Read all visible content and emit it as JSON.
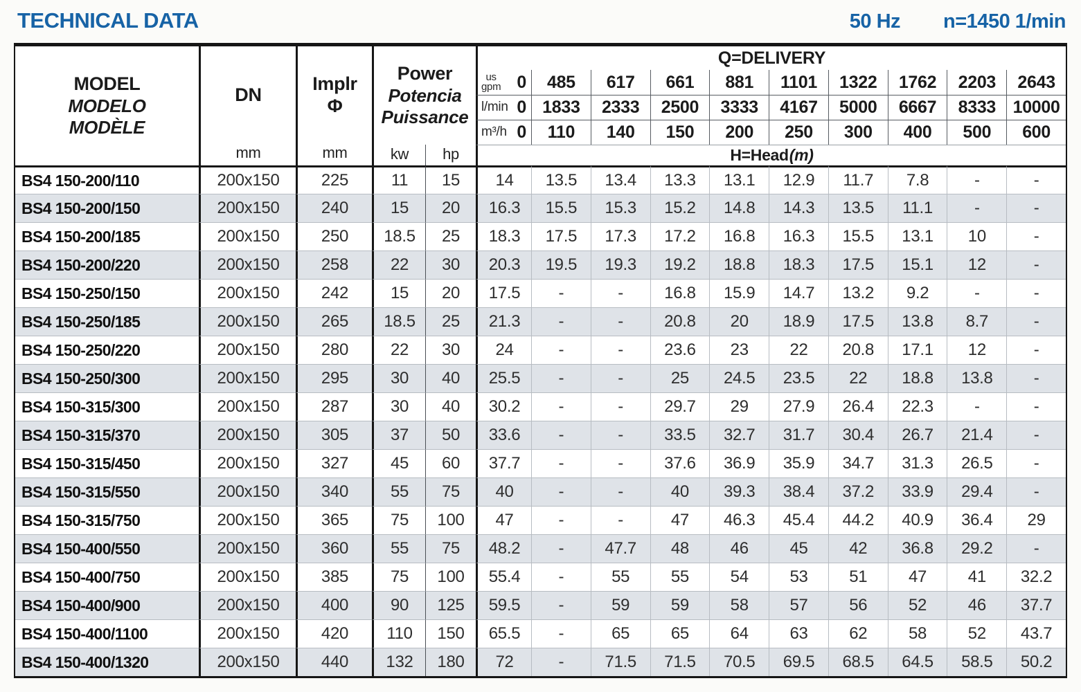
{
  "page": {
    "title": "TECHNICAL DATA",
    "frequency": "50 Hz",
    "speed": "n=1450 1/min"
  },
  "colors": {
    "accent_blue": "#1763a6",
    "row_alt": "#dfe3e8"
  },
  "table": {
    "header": {
      "model": {
        "l1": "MODEL",
        "l2": "MODELO",
        "l3": "MODÈLE"
      },
      "dn": {
        "label": "DN",
        "unit": "mm"
      },
      "implr": {
        "label": "Implr",
        "symbol": "Φ",
        "unit": "mm"
      },
      "power": {
        "l1": "Power",
        "l2": "Potencia",
        "l3": "Puissance",
        "kw": "kw",
        "hp": "hp"
      }
    },
    "delivery": {
      "title": "Q=DELIVERY",
      "head_label": "H=Head",
      "head_unit": "(m)",
      "unit_rows": [
        {
          "id": "us-gpm",
          "line1": "us",
          "line2": "gpm",
          "zero": "0",
          "values": [
            "485",
            "617",
            "661",
            "881",
            "1101",
            "1322",
            "1762",
            "2203",
            "2643"
          ]
        },
        {
          "id": "l-min",
          "line1": "l/min",
          "line2": "",
          "zero": "0",
          "values": [
            "1833",
            "2333",
            "2500",
            "3333",
            "4167",
            "5000",
            "6667",
            "8333",
            "10000"
          ]
        },
        {
          "id": "m3-h",
          "line1": "m³/h",
          "line2": "",
          "zero": "0",
          "values": [
            "110",
            "140",
            "150",
            "200",
            "250",
            "300",
            "400",
            "500",
            "600"
          ]
        }
      ]
    },
    "rows": [
      {
        "model": "BS4 150-200/110",
        "dn": "200x150",
        "implr": "225",
        "kw": "11",
        "hp": "15",
        "head": [
          "14",
          "13.5",
          "13.4",
          "13.3",
          "13.1",
          "12.9",
          "11.7",
          "7.8",
          "-",
          "-"
        ]
      },
      {
        "model": "BS4 150-200/150",
        "dn": "200x150",
        "implr": "240",
        "kw": "15",
        "hp": "20",
        "head": [
          "16.3",
          "15.5",
          "15.3",
          "15.2",
          "14.8",
          "14.3",
          "13.5",
          "11.1",
          "-",
          "-"
        ]
      },
      {
        "model": "BS4 150-200/185",
        "dn": "200x150",
        "implr": "250",
        "kw": "18.5",
        "hp": "25",
        "head": [
          "18.3",
          "17.5",
          "17.3",
          "17.2",
          "16.8",
          "16.3",
          "15.5",
          "13.1",
          "10",
          "-"
        ]
      },
      {
        "model": "BS4 150-200/220",
        "dn": "200x150",
        "implr": "258",
        "kw": "22",
        "hp": "30",
        "head": [
          "20.3",
          "19.5",
          "19.3",
          "19.2",
          "18.8",
          "18.3",
          "17.5",
          "15.1",
          "12",
          "-"
        ]
      },
      {
        "model": "BS4 150-250/150",
        "dn": "200x150",
        "implr": "242",
        "kw": "15",
        "hp": "20",
        "head": [
          "17.5",
          "-",
          "-",
          "16.8",
          "15.9",
          "14.7",
          "13.2",
          "9.2",
          "-",
          "-"
        ]
      },
      {
        "model": "BS4 150-250/185",
        "dn": "200x150",
        "implr": "265",
        "kw": "18.5",
        "hp": "25",
        "head": [
          "21.3",
          "-",
          "-",
          "20.8",
          "20",
          "18.9",
          "17.5",
          "13.8",
          "8.7",
          "-"
        ]
      },
      {
        "model": "BS4 150-250/220",
        "dn": "200x150",
        "implr": "280",
        "kw": "22",
        "hp": "30",
        "head": [
          "24",
          "-",
          "-",
          "23.6",
          "23",
          "22",
          "20.8",
          "17.1",
          "12",
          "-"
        ]
      },
      {
        "model": "BS4 150-250/300",
        "dn": "200x150",
        "implr": "295",
        "kw": "30",
        "hp": "40",
        "head": [
          "25.5",
          "-",
          "-",
          "25",
          "24.5",
          "23.5",
          "22",
          "18.8",
          "13.8",
          "-"
        ]
      },
      {
        "model": "BS4 150-315/300",
        "dn": "200x150",
        "implr": "287",
        "kw": "30",
        "hp": "40",
        "head": [
          "30.2",
          "-",
          "-",
          "29.7",
          "29",
          "27.9",
          "26.4",
          "22.3",
          "-",
          "-"
        ]
      },
      {
        "model": "BS4 150-315/370",
        "dn": "200x150",
        "implr": "305",
        "kw": "37",
        "hp": "50",
        "head": [
          "33.6",
          "-",
          "-",
          "33.5",
          "32.7",
          "31.7",
          "30.4",
          "26.7",
          "21.4",
          "-"
        ]
      },
      {
        "model": "BS4 150-315/450",
        "dn": "200x150",
        "implr": "327",
        "kw": "45",
        "hp": "60",
        "head": [
          "37.7",
          "-",
          "-",
          "37.6",
          "36.9",
          "35.9",
          "34.7",
          "31.3",
          "26.5",
          "-"
        ]
      },
      {
        "model": "BS4 150-315/550",
        "dn": "200x150",
        "implr": "340",
        "kw": "55",
        "hp": "75",
        "head": [
          "40",
          "-",
          "-",
          "40",
          "39.3",
          "38.4",
          "37.2",
          "33.9",
          "29.4",
          "-"
        ]
      },
      {
        "model": "BS4 150-315/750",
        "dn": "200x150",
        "implr": "365",
        "kw": "75",
        "hp": "100",
        "head": [
          "47",
          "-",
          "-",
          "47",
          "46.3",
          "45.4",
          "44.2",
          "40.9",
          "36.4",
          "29"
        ]
      },
      {
        "model": "BS4 150-400/550",
        "dn": "200x150",
        "implr": "360",
        "kw": "55",
        "hp": "75",
        "head": [
          "48.2",
          "-",
          "47.7",
          "48",
          "46",
          "45",
          "42",
          "36.8",
          "29.2",
          "-"
        ]
      },
      {
        "model": "BS4 150-400/750",
        "dn": "200x150",
        "implr": "385",
        "kw": "75",
        "hp": "100",
        "head": [
          "55.4",
          "-",
          "55",
          "55",
          "54",
          "53",
          "51",
          "47",
          "41",
          "32.2"
        ]
      },
      {
        "model": "BS4 150-400/900",
        "dn": "200x150",
        "implr": "400",
        "kw": "90",
        "hp": "125",
        "head": [
          "59.5",
          "-",
          "59",
          "59",
          "58",
          "57",
          "56",
          "52",
          "46",
          "37.7"
        ]
      },
      {
        "model": "BS4 150-400/1100",
        "dn": "200x150",
        "implr": "420",
        "kw": "110",
        "hp": "150",
        "head": [
          "65.5",
          "-",
          "65",
          "65",
          "64",
          "63",
          "62",
          "58",
          "52",
          "43.7"
        ]
      },
      {
        "model": "BS4 150-400/1320",
        "dn": "200x150",
        "implr": "440",
        "kw": "132",
        "hp": "180",
        "head": [
          "72",
          "-",
          "71.5",
          "71.5",
          "70.5",
          "69.5",
          "68.5",
          "64.5",
          "58.5",
          "50.2"
        ]
      }
    ]
  }
}
